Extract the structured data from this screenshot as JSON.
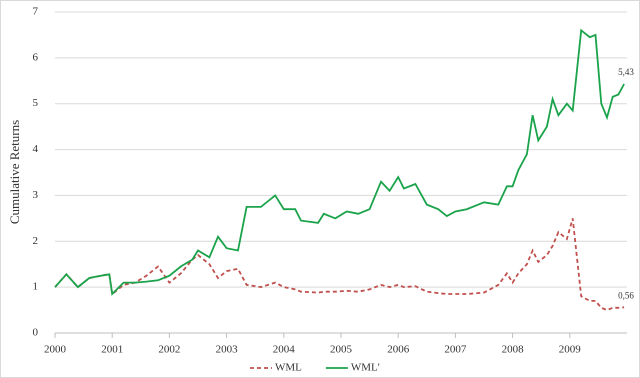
{
  "chart_data": {
    "type": "line",
    "y_label": "Cumulative Returns",
    "x": [
      2000.0,
      2000.2,
      2000.4,
      2000.6,
      2000.8,
      2000.95,
      2001.0,
      2001.2,
      2001.4,
      2001.6,
      2001.8,
      2002.0,
      2002.2,
      2002.4,
      2002.5,
      2002.7,
      2002.85,
      2003.0,
      2003.2,
      2003.35,
      2003.6,
      2003.85,
      2004.0,
      2004.2,
      2004.3,
      2004.6,
      2004.7,
      2004.9,
      2005.1,
      2005.3,
      2005.5,
      2005.7,
      2005.85,
      2006.0,
      2006.1,
      2006.3,
      2006.5,
      2006.7,
      2006.85,
      2007.0,
      2007.2,
      2007.5,
      2007.75,
      2007.9,
      2008.0,
      2008.1,
      2008.25,
      2008.35,
      2008.45,
      2008.6,
      2008.7,
      2008.8,
      2008.95,
      2009.05,
      2009.2,
      2009.35,
      2009.45,
      2009.55,
      2009.65,
      2009.75,
      2009.85,
      2009.95
    ],
    "series": [
      {
        "name": "WML",
        "color": "#c0504d",
        "dashed": true,
        "values": [
          1.0,
          1.28,
          1.0,
          1.2,
          1.25,
          1.28,
          0.85,
          1.05,
          1.1,
          1.25,
          1.45,
          1.1,
          1.3,
          1.6,
          1.7,
          1.5,
          1.2,
          1.35,
          1.4,
          1.05,
          1.0,
          1.1,
          1.0,
          0.95,
          0.9,
          0.88,
          0.9,
          0.9,
          0.92,
          0.9,
          0.95,
          1.05,
          1.0,
          1.05,
          1.0,
          1.02,
          0.9,
          0.87,
          0.85,
          0.85,
          0.85,
          0.88,
          1.05,
          1.3,
          1.1,
          1.3,
          1.5,
          1.8,
          1.55,
          1.7,
          1.9,
          2.2,
          2.05,
          2.5,
          0.8,
          0.7,
          0.7,
          0.55,
          0.5,
          0.55,
          0.55,
          0.56
        ],
        "value_labels": [
          null,
          null,
          null,
          null,
          null,
          null,
          null,
          null,
          null,
          null,
          null,
          null,
          null,
          null,
          null,
          null,
          null,
          null,
          null,
          null,
          null,
          null,
          null,
          null,
          null,
          null,
          null,
          null,
          null,
          null,
          null,
          null,
          null,
          null,
          null,
          null,
          null,
          null,
          null,
          null,
          null,
          null,
          null,
          null,
          null,
          null,
          null,
          null,
          null,
          null,
          null,
          null,
          null,
          null,
          null,
          null,
          null,
          null,
          null,
          null,
          null,
          "0,56"
        ]
      },
      {
        "name": "WML'",
        "color": "#1aa34a",
        "dashed": false,
        "values": [
          1.0,
          1.28,
          1.0,
          1.2,
          1.25,
          1.28,
          0.85,
          1.1,
          1.1,
          1.12,
          1.15,
          1.25,
          1.45,
          1.6,
          1.8,
          1.65,
          2.1,
          1.85,
          1.8,
          2.75,
          2.75,
          3.0,
          2.7,
          2.7,
          2.45,
          2.4,
          2.6,
          2.5,
          2.65,
          2.6,
          2.7,
          3.3,
          3.1,
          3.4,
          3.15,
          3.25,
          2.8,
          2.7,
          2.55,
          2.65,
          2.7,
          2.85,
          2.8,
          3.2,
          3.2,
          3.55,
          3.9,
          4.75,
          4.2,
          4.5,
          5.1,
          4.75,
          5.0,
          4.85,
          6.6,
          6.45,
          6.5,
          5.0,
          4.7,
          5.15,
          5.2,
          5.43
        ],
        "value_labels": [
          null,
          null,
          null,
          null,
          null,
          null,
          null,
          null,
          null,
          null,
          null,
          null,
          null,
          null,
          null,
          null,
          null,
          null,
          null,
          null,
          null,
          null,
          null,
          null,
          null,
          null,
          null,
          null,
          null,
          null,
          null,
          null,
          null,
          null,
          null,
          null,
          null,
          null,
          null,
          null,
          null,
          null,
          null,
          null,
          null,
          null,
          null,
          null,
          null,
          null,
          null,
          null,
          null,
          null,
          null,
          null,
          null,
          null,
          null,
          null,
          null,
          "5,43"
        ]
      }
    ],
    "xlim": [
      2000,
      2010
    ],
    "xticks": [
      2000,
      2001,
      2002,
      2003,
      2004,
      2005,
      2006,
      2007,
      2008,
      2009
    ],
    "ylim": [
      0,
      7
    ],
    "yticks": [
      0,
      1,
      2,
      3,
      4,
      5,
      6,
      7
    ],
    "grid": true,
    "legend": "bottom"
  }
}
